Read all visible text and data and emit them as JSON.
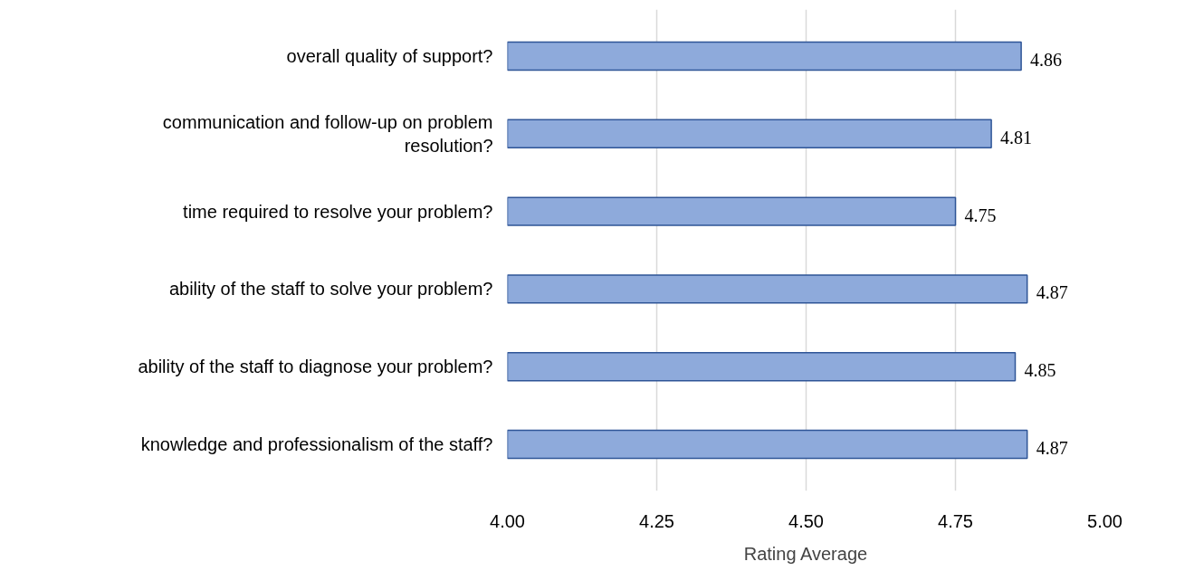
{
  "chart_data": {
    "type": "bar",
    "orientation": "horizontal",
    "xlabel": "Rating Average",
    "categories": [
      "overall quality of support?",
      "communication and follow-up on problem resolution?",
      "time required to resolve your problem?",
      "ability of the staff to solve your problem?",
      "ability of the staff to diagnose your problem?",
      "knowledge and professionalism of the staff?"
    ],
    "values": [
      4.86,
      4.81,
      4.75,
      4.87,
      4.85,
      4.87
    ],
    "color": "#8eaadb",
    "xlim": [
      4,
      5
    ],
    "xticks": [
      {
        "value": 4,
        "label": "4.00"
      },
      {
        "value": 4.25,
        "label": "4.25"
      },
      {
        "value": 4.5,
        "label": "4.50"
      },
      {
        "value": 4.75,
        "label": "4.75"
      },
      {
        "value": 5,
        "label": "5.00"
      }
    ],
    "grid": "x",
    "data_labels": true
  }
}
